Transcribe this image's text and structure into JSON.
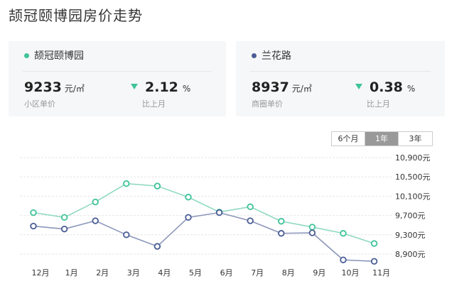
{
  "page": {
    "title": "颉冠颐博园房价走势"
  },
  "cards": [
    {
      "name": "颉冠颐博园",
      "dot_color": "#3fc39a",
      "price": "9233",
      "price_unit": "元/㎡",
      "price_label": "小区单价",
      "change": "2.12",
      "change_unit": "%",
      "change_label": "比上月",
      "change_direction": "down"
    },
    {
      "name": "兰花路",
      "dot_color": "#4a5d96",
      "price": "8937",
      "price_unit": "元/㎡",
      "price_label": "商圈单价",
      "change": "0.38",
      "change_unit": "%",
      "change_label": "比上月",
      "change_direction": "down"
    }
  ],
  "range_tabs": [
    {
      "label": "6个月",
      "active": false
    },
    {
      "label": "1年",
      "active": true
    },
    {
      "label": "3年",
      "active": false
    }
  ],
  "chart_data": {
    "type": "line",
    "categories": [
      "12月",
      "1月",
      "2月",
      "3月",
      "4月",
      "5月",
      "6月",
      "7月",
      "8月",
      "9月",
      "10月",
      "11月"
    ],
    "ylim": [
      8900,
      10900
    ],
    "ytick_values": [
      8900,
      9300,
      9700,
      10100,
      10500,
      10900
    ],
    "ytick_labels": [
      "8,900元",
      "9,300元",
      "9,700元",
      "10,100元",
      "10,500元",
      "10,900元"
    ],
    "grid": true,
    "series": [
      {
        "name": "颉冠颐博园",
        "color": "#8fd9c2",
        "marker_color": "#3fc39a",
        "values": [
          9760,
          9660,
          9980,
          10360,
          10310,
          10080,
          9770,
          9880,
          9580,
          9460,
          9330,
          9120
        ]
      },
      {
        "name": "兰花路",
        "color": "#8c96ba",
        "marker_color": "#4a5d96",
        "values": [
          9480,
          9420,
          9590,
          9300,
          9060,
          9660,
          9760,
          9590,
          9330,
          9340,
          8780,
          8750
        ]
      }
    ]
  }
}
